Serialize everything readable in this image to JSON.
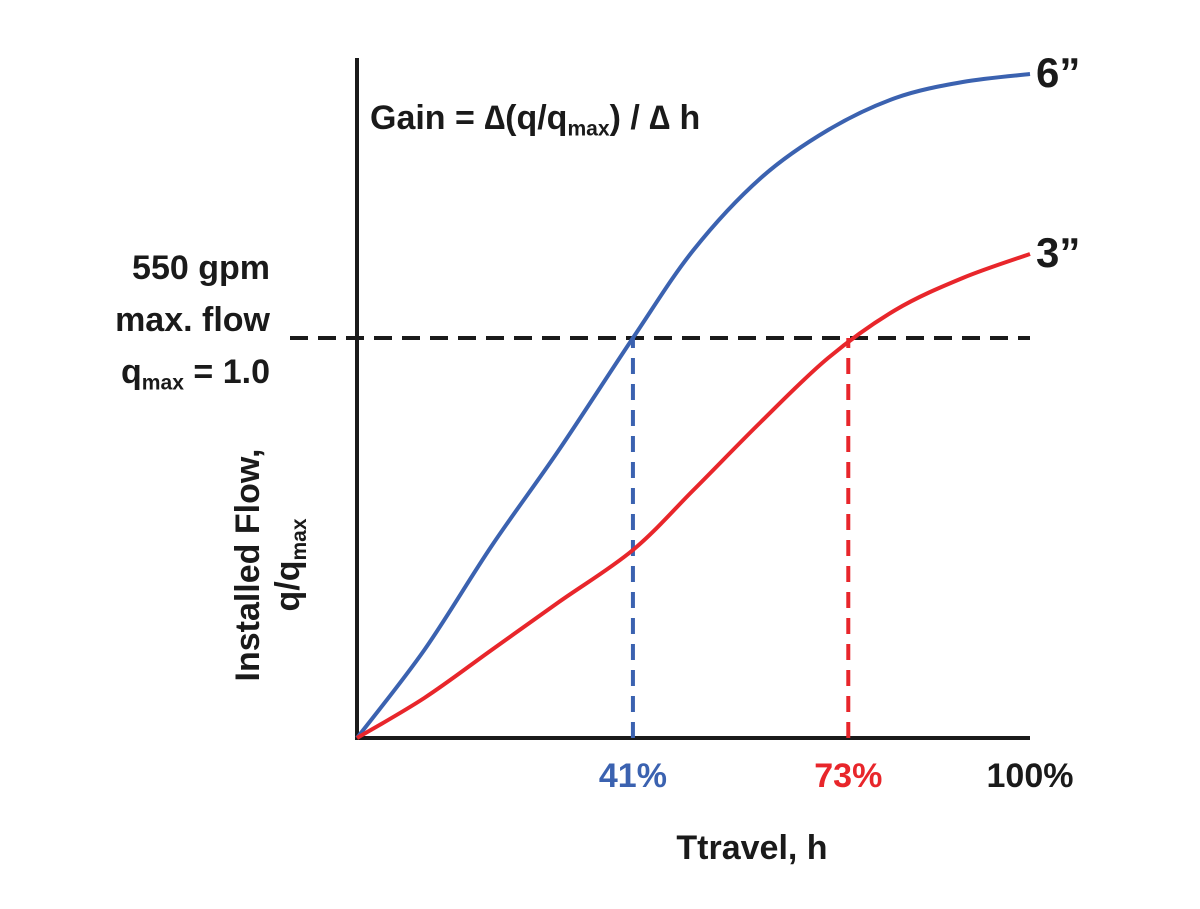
{
  "chart_data": {
    "type": "line",
    "title": [
      "Gain = ∆(q/q",
      "max",
      ") / ∆ h"
    ],
    "x_label": "Ttravel, h",
    "y_label": [
      "Installed Flow,",
      "q/q",
      "max"
    ],
    "x": [
      0,
      10,
      20,
      30,
      41,
      50,
      60,
      70,
      80,
      90,
      100
    ],
    "series": [
      {
        "name": "6”",
        "color": "#3b62b0",
        "values": [
          0,
          0.22,
          0.48,
          0.72,
          1.0,
          1.22,
          1.4,
          1.52,
          1.6,
          1.64,
          1.66
        ]
      },
      {
        "name": "3”",
        "color": "#e8262b",
        "values": [
          0,
          0.1,
          0.22,
          0.34,
          0.47,
          0.62,
          0.79,
          0.95,
          1.07,
          1.15,
          1.21
        ]
      }
    ],
    "xlim": [
      0,
      100
    ],
    "ylim": [
      0,
      1.7
    ],
    "xticks": [
      {
        "value": 41,
        "label": "41%"
      },
      {
        "value": 73,
        "label": "73%"
      },
      {
        "value": 100,
        "label": "100%"
      }
    ],
    "xtick_colors": [
      "#3b62b0",
      "#e8262b",
      "#1a1a1a"
    ],
    "reference_line": {
      "y": 1.0,
      "labels": [
        [
          "550 gpm"
        ],
        [
          "max. flow"
        ],
        [
          "q",
          "max",
          " = 1.0"
        ]
      ]
    }
  }
}
